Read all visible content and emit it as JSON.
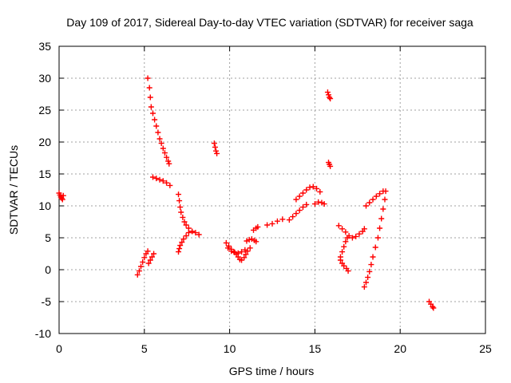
{
  "chart_data": {
    "type": "scatter",
    "title": "Day 109 of 2017, Sidereal Day-to-day VTEC variation (SDTVAR) for receiver saga",
    "xlabel": "GPS time / hours",
    "ylabel": "SDTVAR / TECUs",
    "xlim": [
      0,
      25
    ],
    "ylim": [
      -10,
      35
    ],
    "xticks": [
      0,
      5,
      10,
      15,
      20,
      25
    ],
    "yticks": [
      -10,
      -5,
      0,
      5,
      10,
      15,
      20,
      25,
      30,
      35
    ],
    "grid": true,
    "marker": "+",
    "color": "#ff0000",
    "points": [
      [
        0.0,
        12.0
      ],
      [
        0.05,
        11.7
      ],
      [
        0.1,
        11.4
      ],
      [
        0.15,
        11.2
      ],
      [
        0.2,
        11.0
      ],
      [
        0.25,
        11.6
      ],
      [
        4.6,
        -0.8
      ],
      [
        4.7,
        -0.2
      ],
      [
        4.8,
        0.5
      ],
      [
        4.9,
        1.2
      ],
      [
        5.0,
        1.9
      ],
      [
        5.1,
        2.5
      ],
      [
        5.2,
        2.9
      ],
      [
        5.25,
        1.0
      ],
      [
        5.35,
        1.5
      ],
      [
        5.45,
        2.0
      ],
      [
        5.55,
        2.5
      ],
      [
        5.2,
        30.0
      ],
      [
        5.3,
        28.5
      ],
      [
        5.35,
        27.0
      ],
      [
        5.4,
        25.5
      ],
      [
        5.5,
        24.5
      ],
      [
        5.6,
        23.5
      ],
      [
        5.7,
        22.5
      ],
      [
        5.8,
        21.5
      ],
      [
        5.9,
        20.5
      ],
      [
        6.0,
        19.8
      ],
      [
        6.1,
        19.0
      ],
      [
        6.2,
        18.3
      ],
      [
        6.3,
        17.6
      ],
      [
        6.4,
        17.0
      ],
      [
        6.45,
        16.6
      ],
      [
        5.5,
        14.5
      ],
      [
        5.7,
        14.3
      ],
      [
        5.9,
        14.1
      ],
      [
        6.1,
        13.9
      ],
      [
        6.3,
        13.6
      ],
      [
        6.5,
        13.2
      ],
      [
        7.0,
        11.8
      ],
      [
        7.05,
        10.8
      ],
      [
        7.1,
        9.8
      ],
      [
        7.15,
        9.0
      ],
      [
        7.25,
        8.2
      ],
      [
        7.35,
        7.5
      ],
      [
        7.45,
        7.0
      ],
      [
        7.6,
        6.5
      ],
      [
        7.8,
        6.0
      ],
      [
        8.0,
        5.8
      ],
      [
        8.2,
        5.5
      ],
      [
        7.0,
        2.8
      ],
      [
        7.05,
        3.3
      ],
      [
        7.1,
        3.8
      ],
      [
        7.2,
        4.3
      ],
      [
        7.3,
        4.8
      ],
      [
        7.45,
        5.3
      ],
      [
        7.6,
        5.8
      ],
      [
        7.8,
        6.0
      ],
      [
        9.1,
        19.8
      ],
      [
        9.15,
        19.2
      ],
      [
        9.2,
        18.6
      ],
      [
        9.25,
        18.2
      ],
      [
        9.8,
        4.2
      ],
      [
        9.95,
        3.7
      ],
      [
        10.1,
        3.2
      ],
      [
        10.25,
        2.8
      ],
      [
        10.4,
        2.4
      ],
      [
        10.5,
        2.0
      ],
      [
        10.6,
        1.6
      ],
      [
        10.7,
        1.5
      ],
      [
        10.85,
        1.9
      ],
      [
        10.95,
        2.4
      ],
      [
        11.05,
        2.9
      ],
      [
        11.2,
        3.4
      ],
      [
        9.9,
        3.4
      ],
      [
        10.1,
        2.9
      ],
      [
        10.3,
        2.7
      ],
      [
        10.5,
        2.6
      ],
      [
        10.7,
        2.8
      ],
      [
        10.9,
        3.1
      ],
      [
        11.0,
        4.5
      ],
      [
        11.15,
        4.7
      ],
      [
        11.3,
        4.8
      ],
      [
        11.45,
        4.6
      ],
      [
        11.55,
        4.4
      ],
      [
        11.4,
        6.2
      ],
      [
        11.55,
        6.5
      ],
      [
        11.65,
        6.7
      ],
      [
        12.2,
        7.0
      ],
      [
        12.5,
        7.2
      ],
      [
        12.8,
        7.6
      ],
      [
        13.1,
        7.9
      ],
      [
        13.5,
        7.8
      ],
      [
        13.7,
        8.3
      ],
      [
        13.9,
        8.8
      ],
      [
        14.1,
        9.3
      ],
      [
        14.3,
        9.8
      ],
      [
        14.5,
        10.2
      ],
      [
        13.9,
        11.0
      ],
      [
        14.1,
        11.5
      ],
      [
        14.3,
        12.0
      ],
      [
        14.5,
        12.5
      ],
      [
        14.7,
        12.9
      ],
      [
        14.9,
        13.0
      ],
      [
        15.1,
        12.7
      ],
      [
        15.3,
        12.2
      ],
      [
        15.0,
        10.3
      ],
      [
        15.2,
        10.6
      ],
      [
        15.4,
        10.5
      ],
      [
        15.55,
        10.3
      ],
      [
        15.75,
        27.8
      ],
      [
        15.8,
        27.4
      ],
      [
        15.85,
        27.0
      ],
      [
        15.9,
        26.8
      ],
      [
        15.8,
        16.8
      ],
      [
        15.85,
        16.5
      ],
      [
        15.9,
        16.2
      ],
      [
        16.4,
        6.9
      ],
      [
        16.6,
        6.4
      ],
      [
        16.8,
        5.9
      ],
      [
        17.0,
        5.3
      ],
      [
        17.2,
        5.0
      ],
      [
        17.4,
        5.2
      ],
      [
        17.6,
        5.6
      ],
      [
        17.8,
        6.0
      ],
      [
        17.9,
        6.4
      ],
      [
        16.5,
        2.0
      ],
      [
        16.6,
        2.8
      ],
      [
        16.7,
        3.6
      ],
      [
        16.8,
        4.4
      ],
      [
        16.9,
        5.0
      ],
      [
        16.5,
        1.5
      ],
      [
        16.6,
        1.0
      ],
      [
        16.7,
        0.6
      ],
      [
        16.85,
        0.2
      ],
      [
        16.95,
        -0.2
      ],
      [
        17.9,
        -2.7
      ],
      [
        18.0,
        -2.0
      ],
      [
        18.1,
        -1.2
      ],
      [
        18.2,
        -0.3
      ],
      [
        18.3,
        0.8
      ],
      [
        18.4,
        2.0
      ],
      [
        18.55,
        3.5
      ],
      [
        18.7,
        5.0
      ],
      [
        18.8,
        6.5
      ],
      [
        18.9,
        8.0
      ],
      [
        19.0,
        9.5
      ],
      [
        19.1,
        11.0
      ],
      [
        19.15,
        12.3
      ],
      [
        18.0,
        10.0
      ],
      [
        18.2,
        10.5
      ],
      [
        18.4,
        11.0
      ],
      [
        18.6,
        11.5
      ],
      [
        18.8,
        11.9
      ],
      [
        19.0,
        12.3
      ],
      [
        21.7,
        -5.0
      ],
      [
        21.8,
        -5.4
      ],
      [
        21.9,
        -5.8
      ],
      [
        21.95,
        -6.0
      ]
    ]
  }
}
